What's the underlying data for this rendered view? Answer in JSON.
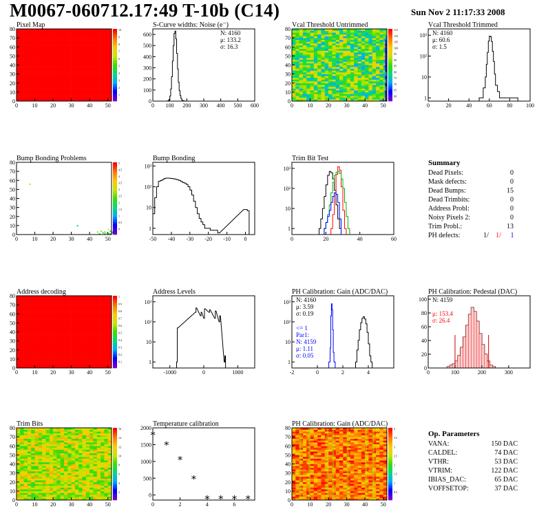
{
  "header": {
    "title": "M0067-060712.17:49 T-10b (C14)",
    "date": "Sun Nov  2 11:17:33 2008"
  },
  "chart_data": [
    {
      "id": "pixel-map",
      "type": "heatmap",
      "title": "Pixel Map",
      "xlim": [
        0,
        52
      ],
      "ylim": [
        0,
        80
      ],
      "xticks": [
        "0",
        "10",
        "20",
        "30",
        "40",
        "50"
      ],
      "yticks": [
        "0",
        "10",
        "20",
        "30",
        "40",
        "50",
        "60",
        "70",
        "80"
      ],
      "fill": "uniform-max",
      "color_scale_max": 10,
      "palette_ticks": [
        "1",
        "2",
        "3",
        "4",
        "5",
        "6",
        "7",
        "8",
        "9",
        "10"
      ]
    },
    {
      "id": "scurve-noise",
      "type": "bar",
      "title": "S-Curve widths: Noise (e⁻)",
      "stats": [
        "N: 4160",
        "μ: 133.2",
        "σ: 16.3"
      ],
      "xlim": [
        0,
        600
      ],
      "ylim": [
        0,
        650
      ],
      "xticks": [
        "0",
        "100",
        "200",
        "300",
        "400",
        "500",
        "600"
      ],
      "yticks": [
        "0",
        "100",
        "200",
        "300",
        "400",
        "500",
        "600"
      ],
      "x": [
        85,
        90,
        95,
        100,
        105,
        110,
        115,
        120,
        125,
        130,
        135,
        140,
        145,
        150,
        155,
        160,
        165,
        170,
        175,
        180,
        185
      ],
      "values": [
        2,
        5,
        15,
        45,
        110,
        220,
        360,
        500,
        610,
        630,
        560,
        430,
        290,
        170,
        95,
        50,
        25,
        10,
        4,
        2,
        1
      ]
    },
    {
      "id": "vcal-untrimmed",
      "type": "heatmap",
      "title": "Vcal Threshold Untrimmed",
      "xlim": [
        0,
        52
      ],
      "ylim": [
        0,
        80
      ],
      "xticks": [
        "0",
        "10",
        "20",
        "30",
        "40",
        "50"
      ],
      "yticks": [
        "0",
        "10",
        "20",
        "30",
        "40",
        "50",
        "60",
        "70",
        "80"
      ],
      "fill": "random-mid",
      "palette_ticks": [
        "60",
        "65",
        "70",
        "75",
        "80",
        "85",
        "90",
        "95",
        "100",
        "105",
        "110",
        "115"
      ]
    },
    {
      "id": "vcal-trimmed",
      "type": "bar",
      "title": "Vcal Threshold Trimmed",
      "log_y": true,
      "stats": [
        "N: 4160",
        "μ: 60.6",
        "σ:  1.5"
      ],
      "xlim": [
        0,
        100
      ],
      "ylim": [
        0.7,
        2000
      ],
      "xticks": [
        "0",
        "20",
        "40",
        "60",
        "80",
        "100"
      ],
      "yticks": [
        "1",
        "10",
        "10²",
        "10³"
      ],
      "x": [
        50,
        52,
        54,
        56,
        57,
        58,
        59,
        60,
        61,
        62,
        63,
        64,
        65,
        66,
        68,
        70,
        74,
        80,
        86
      ],
      "values": [
        1,
        1,
        3,
        10,
        40,
        150,
        520,
        900,
        840,
        500,
        170,
        55,
        14,
        4,
        2,
        1,
        1,
        1,
        1
      ]
    },
    {
      "id": "bump-bonding-problems",
      "type": "heatmap",
      "title": "Bump Bonding Problems",
      "xlim": [
        0,
        52
      ],
      "ylim": [
        0,
        80
      ],
      "xticks": [
        "0",
        "10",
        "20",
        "30",
        "40",
        "50"
      ],
      "yticks": [
        "0",
        "10",
        "20",
        "30",
        "40",
        "50",
        "60",
        "70",
        "80"
      ],
      "fill": "sparse",
      "points": [
        [
          7,
          55
        ],
        [
          33,
          9
        ],
        [
          46,
          3
        ],
        [
          47,
          1
        ],
        [
          48,
          2
        ],
        [
          50,
          5
        ],
        [
          51,
          3
        ],
        [
          49,
          1
        ],
        [
          44,
          2
        ],
        [
          52,
          1
        ],
        [
          50,
          0
        ],
        [
          51,
          0
        ],
        [
          48,
          0
        ],
        [
          45,
          0
        ],
        [
          52,
          2
        ]
      ],
      "palette_ticks": [
        "0",
        "0.5",
        "1",
        "1.5",
        "2",
        "2.5",
        "3",
        "3.5",
        "4",
        "4.5",
        "5"
      ]
    },
    {
      "id": "bump-bonding",
      "type": "bar",
      "title": "Bump Bonding",
      "log_y": true,
      "xlim": [
        -50,
        5
      ],
      "ylim": [
        0.5,
        1500
      ],
      "xticks": [
        "-50",
        "-40",
        "-30",
        "-20",
        "-10",
        "0"
      ],
      "yticks": [
        "1",
        "10",
        "10²",
        "10³"
      ],
      "x": [
        -50,
        -49,
        -48,
        -47,
        -46,
        -45,
        -44,
        -43,
        -42,
        -41,
        -40,
        -39,
        -38,
        -37,
        -36,
        -35,
        -34,
        -33,
        -32,
        -31,
        -30,
        -29,
        -28,
        -27,
        -26,
        -25,
        -24,
        -23,
        -22,
        -21,
        -20,
        -19,
        -18,
        -17,
        -16,
        -15,
        -1,
        0,
        1
      ],
      "values": [
        5,
        30,
        100,
        180,
        200,
        220,
        250,
        260,
        260,
        255,
        250,
        240,
        230,
        220,
        200,
        180,
        160,
        150,
        130,
        100,
        70,
        40,
        20,
        10,
        5,
        3,
        2,
        1.5,
        1,
        1,
        1,
        0.8,
        0.8,
        0.8,
        0.8,
        0.6,
        8,
        8,
        7
      ]
    },
    {
      "id": "trim-bit-test",
      "type": "line",
      "title": "Trim Bit Test",
      "log_y": true,
      "xlim": [
        0,
        60
      ],
      "ylim": [
        0.5,
        2000
      ],
      "xticks": [
        "0",
        "20",
        "40",
        "60"
      ],
      "yticks": [
        "1",
        "10",
        "10²",
        "10³"
      ],
      "series": [
        {
          "color": "#000000",
          "x": [
            16,
            17,
            18,
            19,
            20,
            21,
            22,
            23,
            24,
            25,
            26,
            27,
            28
          ],
          "values": [
            1,
            3,
            10,
            40,
            150,
            450,
            700,
            600,
            300,
            80,
            15,
            3,
            1
          ]
        },
        {
          "color": "#ff0000",
          "x": [
            23,
            24,
            25,
            26,
            27,
            28,
            29,
            30,
            31
          ],
          "values": [
            1,
            5,
            60,
            500,
            1200,
            800,
            120,
            8,
            1
          ]
        },
        {
          "color": "#00b000",
          "x": [
            19,
            20,
            21,
            22,
            23,
            24,
            25,
            26,
            27,
            28,
            29,
            30,
            31,
            32,
            33
          ],
          "values": [
            1,
            2,
            5,
            15,
            60,
            200,
            450,
            650,
            700,
            550,
            300,
            100,
            20,
            4,
            1
          ]
        },
        {
          "color": "#0000ff",
          "x": [
            19,
            20,
            21,
            22,
            23,
            24,
            25,
            26,
            27,
            28
          ],
          "values": [
            1,
            2,
            4,
            8,
            20,
            40,
            60,
            50,
            20,
            3
          ]
        }
      ]
    },
    {
      "id": "address-decoding",
      "type": "heatmap",
      "title": "Address decoding",
      "xlim": [
        0,
        52
      ],
      "ylim": [
        0,
        80
      ],
      "xticks": [
        "0",
        "10",
        "20",
        "30",
        "40",
        "50"
      ],
      "yticks": [
        "0",
        "10",
        "20",
        "30",
        "40",
        "50",
        "60",
        "70",
        "80"
      ],
      "fill": "uniform-max",
      "palette_ticks": [
        "0.1",
        "0.2",
        "0.3",
        "0.4",
        "0.5",
        "0.6",
        "0.7",
        "0.8",
        "0.9",
        "1"
      ]
    },
    {
      "id": "address-levels",
      "type": "bar",
      "title": "Address Levels",
      "log_y": true,
      "xlim": [
        -1500,
        1500
      ],
      "ylim": [
        0.5,
        2000
      ],
      "xticks": [
        "-1000",
        "0",
        "1000"
      ],
      "yticks": [
        "1",
        "10",
        "10²",
        "10³"
      ],
      "x": [
        -800,
        -780,
        -250,
        -230,
        -100,
        -80,
        0,
        20,
        150,
        170,
        320,
        340,
        450,
        470,
        600,
        620
      ],
      "values": [
        1,
        50,
        300,
        500,
        200,
        300,
        150,
        450,
        300,
        400,
        150,
        350,
        100,
        200,
        1,
        2
      ]
    },
    {
      "id": "ph-gain",
      "type": "line",
      "title": "PH Calibration: Gain (ADC/DAC)",
      "log_y": true,
      "stats": [
        "N: 4160",
        "μ: 3.59",
        "σ: 0.19"
      ],
      "fit_stats": [
        "<= 1",
        "Par1:",
        "N: 4159",
        "μ: 1.11",
        "σ: 0.05"
      ],
      "xlim": [
        -2,
        6
      ],
      "ylim": [
        0.5,
        2000
      ],
      "xticks": [
        "-2",
        "0",
        "2",
        "4"
      ],
      "yticks": [
        "1",
        "10",
        "10²",
        "10³"
      ],
      "series": [
        {
          "color": "#0000ff",
          "x": [
            0.9,
            1.0,
            1.05,
            1.1,
            1.15,
            1.2,
            1.25,
            1.3
          ],
          "values": [
            1,
            5,
            200,
            800,
            400,
            40,
            3,
            1
          ]
        },
        {
          "color": "#000000",
          "x": [
            3.0,
            3.1,
            3.2,
            3.3,
            3.4,
            3.5,
            3.6,
            3.7,
            3.8,
            3.9,
            4.0,
            4.1,
            4.2
          ],
          "values": [
            1,
            4,
            12,
            40,
            90,
            150,
            180,
            140,
            80,
            30,
            8,
            2,
            1
          ]
        }
      ]
    },
    {
      "id": "ph-pedestal",
      "type": "bar",
      "title": "PH Calibration: Pedestal (DAC)",
      "stats": [
        "N: 4159"
      ],
      "fit_stats": [
        "μ: 153.4",
        "σ: 26.4"
      ],
      "xlim": [
        0,
        380
      ],
      "ylim": [
        0,
        105
      ],
      "xticks": [
        "0",
        "100",
        "200",
        "300"
      ],
      "yticks": [
        "0",
        "20",
        "40",
        "60",
        "80",
        "100"
      ],
      "x": [
        70,
        80,
        90,
        100,
        110,
        120,
        130,
        140,
        150,
        160,
        170,
        180,
        190,
        200,
        210,
        220,
        230,
        240
      ],
      "values": [
        2,
        4,
        6,
        10,
        18,
        30,
        45,
        62,
        78,
        88,
        82,
        68,
        50,
        34,
        20,
        10,
        4,
        2
      ],
      "cut_lines": [
        100,
        225
      ]
    },
    {
      "id": "trim-bits",
      "type": "heatmap",
      "title": "Trim Bits",
      "xlim": [
        0,
        52
      ],
      "ylim": [
        0,
        80
      ],
      "xticks": [
        "0",
        "10",
        "20",
        "30",
        "40",
        "50"
      ],
      "yticks": [
        "0",
        "10",
        "20",
        "30",
        "40",
        "50",
        "60",
        "70",
        "80"
      ],
      "fill": "random-green",
      "palette_ticks": [
        "2",
        "4",
        "6",
        "8",
        "10",
        "12",
        "14",
        "16"
      ]
    },
    {
      "id": "temperature-calibration",
      "type": "scatter",
      "title": "Temperature calibration",
      "xlim": [
        0,
        7.5
      ],
      "ylim": [
        -150,
        2000
      ],
      "xticks": [
        "0",
        "2",
        "4",
        "6"
      ],
      "yticks": [
        "0",
        "500",
        "1000",
        "1500",
        "2000"
      ],
      "x": [
        0,
        1,
        2,
        3,
        4,
        5,
        6,
        7
      ],
      "values": [
        1850,
        1550,
        1110,
        540,
        -60,
        -60,
        -60,
        -60
      ]
    },
    {
      "id": "ph-gain-map",
      "type": "heatmap",
      "title": "PH Calibration: Gain (ADC/DAC)",
      "xlim": [
        0,
        52
      ],
      "ylim": [
        0,
        80
      ],
      "xticks": [
        "0",
        "10",
        "20",
        "30",
        "40",
        "50"
      ],
      "yticks": [
        "0",
        "10",
        "20",
        "30",
        "40",
        "50",
        "60",
        "70",
        "80"
      ],
      "fill": "random-hot",
      "palette_ticks": [
        "0.5",
        "1",
        "1.5",
        "2",
        "2.5",
        "3",
        "3.5",
        "4"
      ]
    }
  ],
  "summary": {
    "title": "Summary",
    "rows": [
      {
        "label": "Dead Pixels:",
        "value": "0"
      },
      {
        "label": "Mask defects:",
        "value": "0"
      },
      {
        "label": "Dead Bumps:",
        "value": "15"
      },
      {
        "label": "Dead Trimbits:",
        "value": "0"
      },
      {
        "label": "Address Probl:",
        "value": "0"
      },
      {
        "label": "Noisy Pixels 2:",
        "value": "0"
      },
      {
        "label": "Trim Probl.:",
        "value": "13"
      }
    ],
    "ph_label": "PH defects:",
    "ph_values": [
      {
        "text": "1/",
        "color": "#000000"
      },
      {
        "text": "1/",
        "color": "#ff0000"
      },
      {
        "text": "1",
        "color": "#0000ff"
      }
    ]
  },
  "op_parameters": {
    "title": "Op. Parameters",
    "rows": [
      {
        "label": "VANA:",
        "value": "150 DAC"
      },
      {
        "label": "CALDEL:",
        "value": "74 DAC"
      },
      {
        "label": "VTHR:",
        "value": "53 DAC"
      },
      {
        "label": "VTRIM:",
        "value": "122 DAC"
      },
      {
        "label": "IBIAS_DAC:",
        "value": "65 DAC"
      },
      {
        "label": "VOFFSETOP:",
        "value": "37 DAC"
      }
    ]
  }
}
